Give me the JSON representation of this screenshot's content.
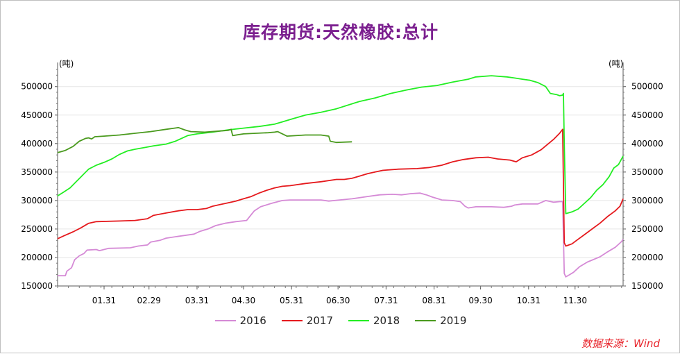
{
  "chart_data": {
    "type": "line",
    "title": "库存期货:天然橡胶:总计",
    "unit_left": "(吨)",
    "unit_right": "(吨)",
    "source": "数据来源：Wind",
    "x_ticks": [
      "01.31",
      "02.29",
      "03.31",
      "04.30",
      "05.31",
      "06.30",
      "07.31",
      "08.31",
      "09.30",
      "10.31",
      "11.30"
    ],
    "x_tick_days": [
      30,
      59,
      90,
      120,
      151,
      181,
      212,
      243,
      273,
      304,
      334
    ],
    "x_range_days": [
      0,
      365
    ],
    "y_ticks": [
      150000,
      200000,
      250000,
      300000,
      350000,
      400000,
      450000,
      500000
    ],
    "ylim": [
      150000,
      535000
    ],
    "grid": true,
    "legend_position": "bottom",
    "series": [
      {
        "name": "2016",
        "color": "#d58ad6",
        "points": [
          [
            0,
            168000
          ],
          [
            5,
            168000
          ],
          [
            6,
            176000
          ],
          [
            9,
            182000
          ],
          [
            11,
            196000
          ],
          [
            14,
            203000
          ],
          [
            17,
            207000
          ],
          [
            19,
            213000
          ],
          [
            25,
            214000
          ],
          [
            27,
            212000
          ],
          [
            33,
            216000
          ],
          [
            47,
            217000
          ],
          [
            52,
            220000
          ],
          [
            58,
            222000
          ],
          [
            60,
            227000
          ],
          [
            66,
            230000
          ],
          [
            70,
            234000
          ],
          [
            80,
            238000
          ],
          [
            88,
            241000
          ],
          [
            92,
            246000
          ],
          [
            97,
            250000
          ],
          [
            102,
            256000
          ],
          [
            108,
            260000
          ],
          [
            115,
            263000
          ],
          [
            122,
            265000
          ],
          [
            124,
            272000
          ],
          [
            127,
            282000
          ],
          [
            131,
            289000
          ],
          [
            138,
            295000
          ],
          [
            145,
            300000
          ],
          [
            150,
            301000
          ],
          [
            160,
            301000
          ],
          [
            170,
            301000
          ],
          [
            175,
            299000
          ],
          [
            182,
            301000
          ],
          [
            190,
            303000
          ],
          [
            200,
            307000
          ],
          [
            208,
            310000
          ],
          [
            216,
            311000
          ],
          [
            222,
            310000
          ],
          [
            228,
            312000
          ],
          [
            234,
            313000
          ],
          [
            238,
            310000
          ],
          [
            242,
            306000
          ],
          [
            248,
            301000
          ],
          [
            255,
            300000
          ],
          [
            260,
            298000
          ],
          [
            263,
            290000
          ],
          [
            265,
            287000
          ],
          [
            270,
            289000
          ],
          [
            280,
            289000
          ],
          [
            288,
            288000
          ],
          [
            293,
            290000
          ],
          [
            295,
            292000
          ],
          [
            300,
            294000
          ],
          [
            305,
            294000
          ],
          [
            310,
            294000
          ],
          [
            315,
            300000
          ],
          [
            320,
            297000
          ],
          [
            324,
            298000
          ],
          [
            326,
            298000
          ],
          [
            327,
            172000
          ],
          [
            328,
            166000
          ],
          [
            330,
            169000
          ],
          [
            333,
            174000
          ],
          [
            337,
            184000
          ],
          [
            342,
            192000
          ],
          [
            350,
            201000
          ],
          [
            355,
            210000
          ],
          [
            360,
            218000
          ],
          [
            364,
            228000
          ],
          [
            365,
            232000
          ]
        ]
      },
      {
        "name": "2017",
        "color": "#e5191d",
        "points": [
          [
            0,
            233000
          ],
          [
            4,
            238000
          ],
          [
            10,
            245000
          ],
          [
            15,
            252000
          ],
          [
            20,
            260000
          ],
          [
            25,
            263000
          ],
          [
            40,
            264000
          ],
          [
            50,
            265000
          ],
          [
            58,
            268000
          ],
          [
            62,
            274000
          ],
          [
            70,
            278000
          ],
          [
            78,
            282000
          ],
          [
            84,
            284000
          ],
          [
            90,
            284000
          ],
          [
            96,
            286000
          ],
          [
            100,
            290000
          ],
          [
            105,
            293000
          ],
          [
            110,
            296000
          ],
          [
            115,
            299000
          ],
          [
            120,
            303000
          ],
          [
            125,
            307000
          ],
          [
            130,
            313000
          ],
          [
            135,
            318000
          ],
          [
            140,
            322000
          ],
          [
            145,
            325000
          ],
          [
            150,
            326000
          ],
          [
            160,
            330000
          ],
          [
            170,
            333000
          ],
          [
            180,
            337000
          ],
          [
            185,
            337000
          ],
          [
            190,
            339000
          ],
          [
            195,
            343000
          ],
          [
            200,
            347000
          ],
          [
            205,
            350000
          ],
          [
            210,
            353000
          ],
          [
            220,
            355000
          ],
          [
            232,
            356000
          ],
          [
            240,
            358000
          ],
          [
            248,
            362000
          ],
          [
            255,
            368000
          ],
          [
            262,
            372000
          ],
          [
            270,
            375000
          ],
          [
            278,
            376000
          ],
          [
            284,
            373000
          ],
          [
            292,
            371000
          ],
          [
            296,
            368000
          ],
          [
            300,
            375000
          ],
          [
            306,
            380000
          ],
          [
            312,
            389000
          ],
          [
            316,
            398000
          ],
          [
            320,
            407000
          ],
          [
            324,
            418000
          ],
          [
            326,
            425000
          ],
          [
            327,
            226000
          ],
          [
            328,
            220000
          ],
          [
            332,
            224000
          ],
          [
            336,
            232000
          ],
          [
            340,
            240000
          ],
          [
            345,
            250000
          ],
          [
            350,
            260000
          ],
          [
            355,
            272000
          ],
          [
            360,
            282000
          ],
          [
            363,
            290000
          ],
          [
            365,
            303000
          ]
        ]
      },
      {
        "name": "2018",
        "color": "#22ee22",
        "points": [
          [
            0,
            308000
          ],
          [
            4,
            315000
          ],
          [
            8,
            322000
          ],
          [
            12,
            333000
          ],
          [
            16,
            344000
          ],
          [
            20,
            355000
          ],
          [
            25,
            362000
          ],
          [
            30,
            367000
          ],
          [
            35,
            373000
          ],
          [
            40,
            381000
          ],
          [
            45,
            387000
          ],
          [
            50,
            390000
          ],
          [
            56,
            393000
          ],
          [
            62,
            396000
          ],
          [
            70,
            399000
          ],
          [
            76,
            404000
          ],
          [
            80,
            409000
          ],
          [
            84,
            414000
          ],
          [
            90,
            417000
          ],
          [
            100,
            420000
          ],
          [
            110,
            424000
          ],
          [
            120,
            427000
          ],
          [
            130,
            430000
          ],
          [
            140,
            434000
          ],
          [
            145,
            438000
          ],
          [
            150,
            442000
          ],
          [
            155,
            446000
          ],
          [
            160,
            450000
          ],
          [
            170,
            455000
          ],
          [
            180,
            461000
          ],
          [
            188,
            468000
          ],
          [
            195,
            474000
          ],
          [
            205,
            480000
          ],
          [
            215,
            488000
          ],
          [
            225,
            494000
          ],
          [
            235,
            499000
          ],
          [
            245,
            502000
          ],
          [
            255,
            508000
          ],
          [
            265,
            513000
          ],
          [
            270,
            517000
          ],
          [
            280,
            519000
          ],
          [
            290,
            517000
          ],
          [
            295,
            515000
          ],
          [
            300,
            513000
          ],
          [
            305,
            511000
          ],
          [
            310,
            507000
          ],
          [
            315,
            500000
          ],
          [
            318,
            488000
          ],
          [
            322,
            486000
          ],
          [
            324,
            484000
          ],
          [
            326,
            485000
          ],
          [
            326.5,
            488000
          ],
          [
            327,
            400000
          ],
          [
            328,
            277000
          ],
          [
            332,
            280000
          ],
          [
            336,
            285000
          ],
          [
            340,
            295000
          ],
          [
            344,
            305000
          ],
          [
            348,
            318000
          ],
          [
            352,
            328000
          ],
          [
            356,
            342000
          ],
          [
            359,
            357000
          ],
          [
            362,
            363000
          ],
          [
            365,
            378000
          ]
        ]
      },
      {
        "name": "2019",
        "color": "#4a9a1e",
        "points": [
          [
            0,
            384000
          ],
          [
            5,
            388000
          ],
          [
            10,
            395000
          ],
          [
            14,
            404000
          ],
          [
            18,
            409000
          ],
          [
            20,
            410000
          ],
          [
            22,
            408000
          ],
          [
            24,
            412000
          ],
          [
            30,
            413000
          ],
          [
            40,
            415000
          ],
          [
            50,
            418000
          ],
          [
            60,
            421000
          ],
          [
            70,
            425000
          ],
          [
            78,
            428000
          ],
          [
            82,
            424000
          ],
          [
            86,
            421000
          ],
          [
            95,
            420000
          ],
          [
            105,
            422000
          ],
          [
            110,
            423000
          ],
          [
            112,
            425000
          ],
          [
            113,
            414000
          ],
          [
            120,
            417000
          ],
          [
            128,
            418000
          ],
          [
            136,
            419000
          ],
          [
            140,
            420000
          ],
          [
            142,
            421000
          ],
          [
            148,
            413000
          ],
          [
            160,
            415000
          ],
          [
            170,
            415000
          ],
          [
            175,
            413000
          ],
          [
            176,
            404000
          ],
          [
            180,
            402000
          ],
          [
            190,
            403000
          ]
        ]
      }
    ]
  }
}
